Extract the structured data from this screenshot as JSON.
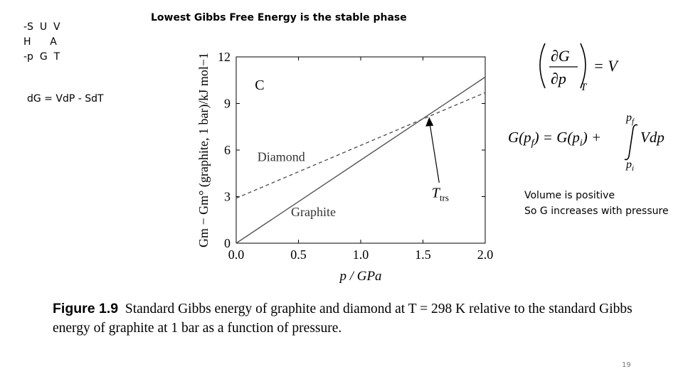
{
  "mnemonic": {
    "row1": "-S  U  V",
    "row2": "H      A",
    "row3": "-p  G  T"
  },
  "heading": "Lowest Gibbs Free Energy is the stable phase",
  "fundamental_eq": "dG = VdP - SdT",
  "note": {
    "line1": "Volume is positive",
    "line2": "So G increases with pressure"
  },
  "equations": {
    "partial_rhs": "= V",
    "partial_subscript": "T",
    "integral_lhs": "G(p",
    "integral_lhs_sub": "f",
    "integral_mid": ") = G(p",
    "integral_mid_sub": "i",
    "integral_plus": ") +",
    "integral_upper": "p",
    "integral_upper_sub": "f",
    "integral_lower": "p",
    "integral_lower_sub": "i",
    "integrand": "Vdp"
  },
  "caption": {
    "label": "Figure 1.9",
    "text": "Standard Gibbs energy of graphite and diamond at T = 298 K relative to the standard Gibbs energy of graphite at 1 bar as a function of pressure."
  },
  "page_number": "19",
  "chart_data": {
    "type": "line",
    "xlabel": "p / GPa",
    "ylabel": "Gm − Gm° (graphite, 1 bar)/kJ mol−1",
    "xlim": [
      0.0,
      2.0
    ],
    "ylim": [
      0,
      12
    ],
    "xticks": [
      "0.0",
      "0.5",
      "1.0",
      "1.5",
      "2.0"
    ],
    "yticks": [
      "0",
      "3",
      "6",
      "9",
      "12"
    ],
    "series": [
      {
        "name": "Graphite",
        "style": "solid",
        "x": [
          0.0,
          2.0
        ],
        "y": [
          0.0,
          10.7
        ]
      },
      {
        "name": "Diamond",
        "style": "dashed",
        "x": [
          0.0,
          2.0
        ],
        "y": [
          2.9,
          9.7
        ]
      }
    ],
    "annotations": {
      "panel_label": "C",
      "transition_label": "Ttrs",
      "transition_x": 1.55,
      "transition_y": 8.3
    },
    "grid": false,
    "line_color": "#555555"
  }
}
